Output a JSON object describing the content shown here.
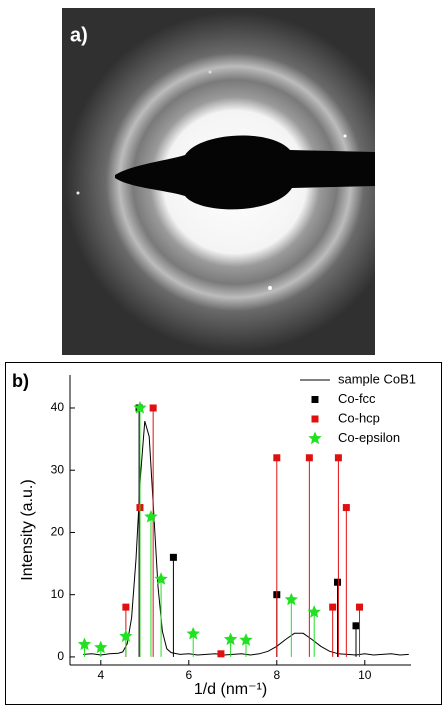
{
  "panel_labels": [
    "a)",
    "b)"
  ],
  "chart_data": {
    "type": "line",
    "xlabel": "1/d (nm⁻¹)",
    "ylabel": "Intensity (a.u.)",
    "xlim": [
      3.3,
      11.05
    ],
    "ylim": [
      -1.3,
      45.3
    ],
    "xticks": [
      4,
      6,
      8,
      10
    ],
    "yticks": [
      0,
      10,
      20,
      30,
      40
    ],
    "drop_lines": true,
    "legend": "upper right",
    "series": [
      {
        "name": "sample CoB1",
        "color": "#000000",
        "marker": "line",
        "x": [
          3.6,
          3.8,
          4.0,
          4.2,
          4.4,
          4.5,
          4.6,
          4.7,
          4.8,
          4.9,
          5.0,
          5.1,
          5.2,
          5.3,
          5.4,
          5.5,
          5.6,
          5.8,
          6.0,
          6.2,
          6.4,
          6.6,
          6.8,
          7.0,
          7.2,
          7.4,
          7.6,
          7.8,
          8.0,
          8.2,
          8.4,
          8.6,
          8.8,
          9.0,
          9.2,
          9.4,
          9.6,
          9.8,
          10.0,
          10.2,
          10.4,
          10.6,
          10.8,
          11.0
        ],
        "values": [
          0.4,
          0.5,
          0.3,
          0.5,
          0.6,
          0.8,
          2.1,
          6.3,
          15.7,
          28.9,
          37.9,
          35.4,
          23.5,
          11.3,
          4.1,
          1.3,
          0.7,
          0.4,
          0.5,
          0.3,
          0.4,
          0.5,
          0.3,
          0.4,
          0.5,
          0.3,
          0.5,
          0.9,
          1.7,
          2.8,
          3.8,
          3.8,
          2.8,
          1.7,
          0.9,
          0.5,
          0.4,
          0.3,
          0.5,
          0.3,
          0.4,
          0.5,
          0.3,
          0.4
        ]
      },
      {
        "name": "Co-fcc",
        "color": "#000000",
        "marker": "square",
        "x": [
          4.87,
          5.65,
          8.0,
          9.38,
          9.8
        ],
        "values": [
          40,
          16,
          10,
          12,
          5
        ]
      },
      {
        "name": "Co-hcp",
        "color": "#e01010",
        "marker": "square",
        "x": [
          4.57,
          4.89,
          5.19,
          6.73,
          8.0,
          8.74,
          9.27,
          9.4,
          9.58,
          9.88
        ],
        "values": [
          8,
          24,
          40,
          0.5,
          32,
          32,
          8,
          32,
          24,
          8
        ]
      },
      {
        "name": "Co-epsilon",
        "color": "#22e022",
        "marker": "star",
        "x": [
          3.63,
          4.0,
          4.57,
          4.89,
          5.14,
          5.37,
          6.1,
          6.95,
          7.3,
          8.33,
          8.85
        ],
        "values": [
          2,
          1.5,
          3.3,
          40,
          22.5,
          12.5,
          3.7,
          2.8,
          2.7,
          9.2,
          7.2
        ]
      }
    ]
  }
}
